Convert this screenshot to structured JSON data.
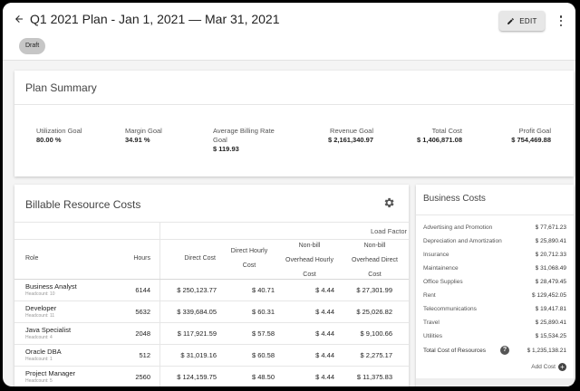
{
  "header": {
    "title": "Q1 2021 Plan - Jan 1, 2021 — Mar 31, 2021",
    "edit_label": "EDIT",
    "status_badge": "Draft"
  },
  "summary": {
    "title": "Plan Summary",
    "metrics": [
      {
        "label": "Utilization Goal",
        "value": "80.00 %"
      },
      {
        "label": "Margin Goal",
        "value": "34.91 %"
      },
      {
        "label": "Average Billing Rate Goal",
        "value": "$ 119.93"
      },
      {
        "label": "Revenue Goal",
        "value": "$ 2,161,340.97"
      },
      {
        "label": "Total Cost",
        "value": "$ 1,406,871.08"
      },
      {
        "label": "Profit Goal",
        "value": "$ 754,469.88"
      }
    ]
  },
  "billable": {
    "title": "Billable Resource Costs",
    "group_header": "Load Factor",
    "columns": {
      "role": "Role",
      "hours": "Hours",
      "direct_cost": "Direct Cost",
      "direct_hourly_cost": "Direct Hourly Cost",
      "nonbill_hourly": "Non-bill Overhead Hourly Cost",
      "nonbill_direct": "Non-bill Overhead Direct Cost"
    },
    "rows": [
      {
        "role": "Business Analyst",
        "headcount": "Headcount: 10",
        "hours": "6144",
        "direct_cost": "$ 250,123.77",
        "direct_hourly": "$ 40.71",
        "nonbill_hourly": "$ 4.44",
        "nonbill_direct": "$ 27,301.99"
      },
      {
        "role": "Developer",
        "headcount": "Headcount: 11",
        "hours": "5632",
        "direct_cost": "$ 339,684.05",
        "direct_hourly": "$ 60.31",
        "nonbill_hourly": "$ 4.44",
        "nonbill_direct": "$ 25,026.82"
      },
      {
        "role": "Java Specialist",
        "headcount": "Headcount: 4",
        "hours": "2048",
        "direct_cost": "$ 117,921.59",
        "direct_hourly": "$ 57.58",
        "nonbill_hourly": "$ 4.44",
        "nonbill_direct": "$ 9,100.66"
      },
      {
        "role": "Oracle DBA",
        "headcount": "Headcount: 1",
        "hours": "512",
        "direct_cost": "$ 31,019.16",
        "direct_hourly": "$ 60.58",
        "nonbill_hourly": "$ 4.44",
        "nonbill_direct": "$ 2,275.17"
      },
      {
        "role": "Project Manager",
        "headcount": "Headcount: 5",
        "hours": "2560",
        "direct_cost": "$ 124,159.75",
        "direct_hourly": "$ 48.50",
        "nonbill_hourly": "$ 4.44",
        "nonbill_direct": "$ 11,375.83"
      }
    ]
  },
  "business_costs": {
    "title": "Business Costs",
    "items": [
      {
        "name": "Advertising and Promotion",
        "value": "$ 77,671.23"
      },
      {
        "name": "Depreciation and Amortization",
        "value": "$ 25,890.41"
      },
      {
        "name": "Insurance",
        "value": "$ 20,712.33"
      },
      {
        "name": "Maintainence",
        "value": "$ 31,068.49"
      },
      {
        "name": "Office Supplies",
        "value": "$ 28,479.45"
      },
      {
        "name": "Rent",
        "value": "$ 129,452.05"
      },
      {
        "name": "Telecommunications",
        "value": "$ 19,417.81"
      },
      {
        "name": "Travel",
        "value": "$ 25,890.41"
      },
      {
        "name": "Utilities",
        "value": "$ 15,534.25"
      }
    ],
    "total_label": "Total Cost of Resources",
    "total_value": "$ 1,235,138.21",
    "help_glyph": "?",
    "add_label": "Add Cost",
    "add_glyph": "+"
  },
  "colors": {
    "background": "#f4f4f4",
    "card": "#ffffff",
    "badge": "#c6c6c6",
    "text": "#222222"
  },
  "icons": [
    "arrow-back-icon",
    "pencil-icon",
    "more-vert-icon",
    "gear-icon",
    "help-icon",
    "add-circle-icon"
  ]
}
